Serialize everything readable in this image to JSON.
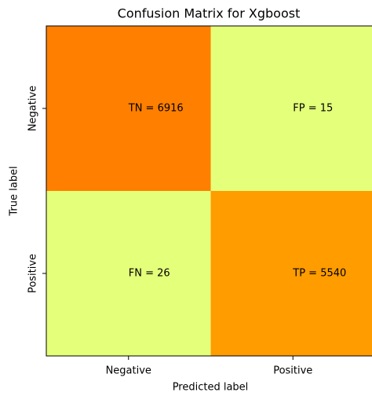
{
  "chart_data": {
    "type": "heatmap",
    "title": "Confusion Matrix for Xgboost",
    "x_label": "Predicted label",
    "y_label": "True label",
    "x_categories": [
      "Negative",
      "Positive"
    ],
    "y_categories": [
      "Negative",
      "Positive"
    ],
    "values": [
      [
        6916,
        15
      ],
      [
        26,
        5540
      ]
    ],
    "value_labels": [
      [
        "TN = 6916",
        "FP = 15"
      ],
      [
        "FN = 26",
        "TP = 5540"
      ]
    ],
    "cell_colors": [
      [
        "#ff7f00",
        "#e4ff7a"
      ],
      [
        "#e4ff7a",
        "#ff9c00"
      ]
    ]
  }
}
